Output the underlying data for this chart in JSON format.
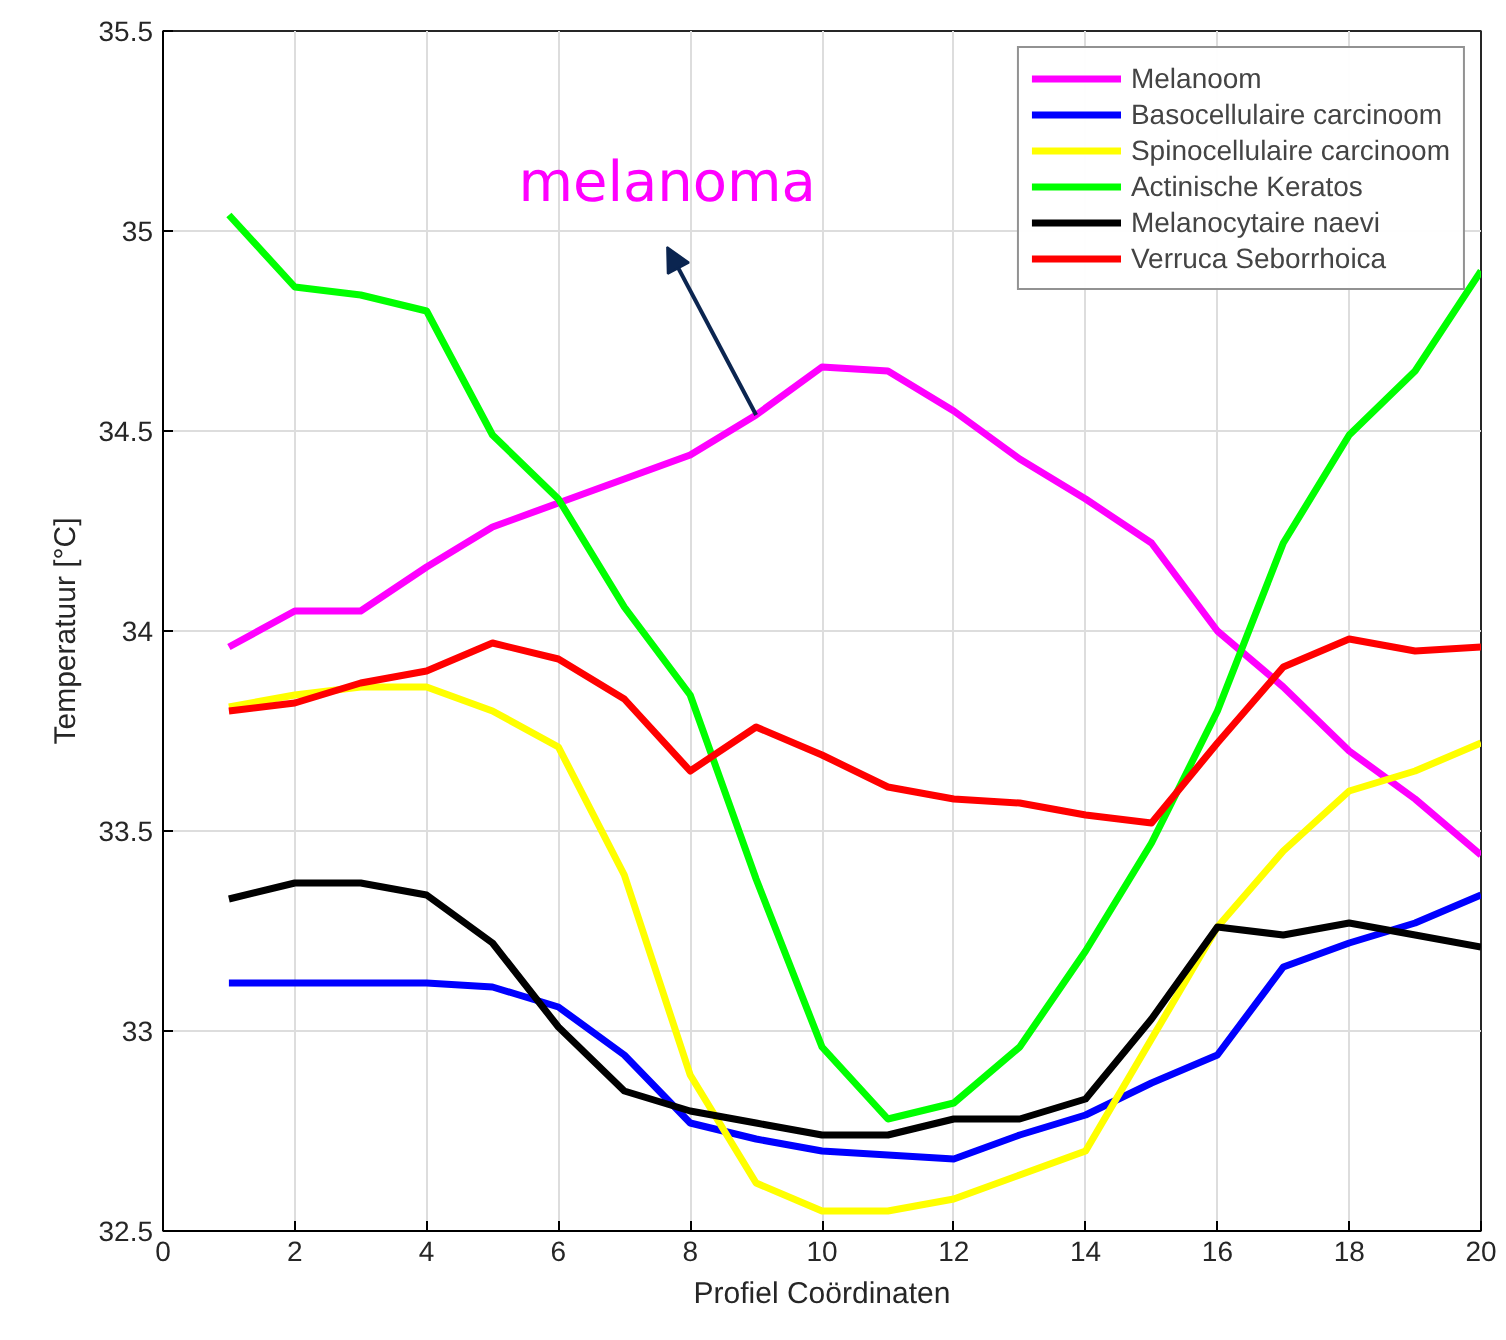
{
  "chart_data": {
    "type": "line",
    "xlabel": "Profiel Coördinaten",
    "ylabel": "Temperatuur [°C]",
    "x": [
      1,
      2,
      3,
      4,
      5,
      6,
      7,
      8,
      9,
      10,
      11,
      12,
      13,
      14,
      15,
      16,
      17,
      18,
      19,
      20
    ],
    "series": [
      {
        "name": "Melanoom",
        "color": "#ff00ff",
        "values": [
          33.96,
          34.05,
          34.05,
          34.16,
          34.26,
          34.32,
          34.38,
          34.44,
          34.54,
          34.66,
          34.65,
          34.55,
          34.43,
          34.33,
          34.22,
          34.0,
          33.86,
          33.7,
          33.58,
          33.44
        ]
      },
      {
        "name": "Basocellulaire carcinoom",
        "color": "#0000ff",
        "values": [
          33.12,
          33.12,
          33.12,
          33.12,
          33.11,
          33.06,
          32.94,
          32.77,
          32.73,
          32.7,
          32.69,
          32.68,
          32.74,
          32.79,
          32.87,
          32.94,
          33.16,
          33.22,
          33.27,
          33.34
        ]
      },
      {
        "name": "Spinocellulaire carcinoom",
        "color": "#ffff00",
        "values": [
          33.81,
          33.84,
          33.86,
          33.86,
          33.8,
          33.71,
          33.39,
          32.89,
          32.62,
          32.55,
          32.55,
          32.58,
          32.64,
          32.7,
          32.98,
          33.26,
          33.45,
          33.6,
          33.65,
          33.72
        ]
      },
      {
        "name": "Actinische Keratos",
        "color": "#00ff00",
        "values": [
          35.04,
          34.86,
          34.84,
          34.8,
          34.49,
          34.33,
          34.06,
          33.84,
          33.38,
          32.96,
          32.78,
          32.82,
          32.96,
          33.2,
          33.47,
          33.8,
          34.22,
          34.49,
          34.65,
          34.9
        ]
      },
      {
        "name": "Melanocytaire naevi",
        "color": "#000000",
        "values": [
          33.33,
          33.37,
          33.37,
          33.34,
          33.22,
          33.01,
          32.85,
          32.8,
          32.77,
          32.74,
          32.74,
          32.78,
          32.78,
          32.83,
          33.03,
          33.26,
          33.24,
          33.27,
          33.24,
          33.21
        ]
      },
      {
        "name": "Verruca Seborrhoica",
        "color": "#ff0000",
        "values": [
          33.8,
          33.82,
          33.87,
          33.9,
          33.97,
          33.93,
          33.83,
          33.65,
          33.76,
          33.69,
          33.61,
          33.58,
          33.57,
          33.54,
          33.52,
          33.72,
          33.91,
          33.98,
          33.95,
          33.96
        ]
      }
    ],
    "xlim": [
      0,
      20
    ],
    "xticks": [
      0,
      2,
      4,
      6,
      8,
      10,
      12,
      14,
      16,
      18,
      20
    ],
    "ylim": [
      32.5,
      35.5
    ],
    "yticks": [
      32.5,
      33,
      33.5,
      34,
      34.5,
      35,
      35.5
    ],
    "annotations": [
      {
        "text": "melanoma",
        "x": 9,
        "y": 34.54
      }
    ],
    "grid": true,
    "legend": "top right",
    "line_style": "solid",
    "marker": "none"
  }
}
